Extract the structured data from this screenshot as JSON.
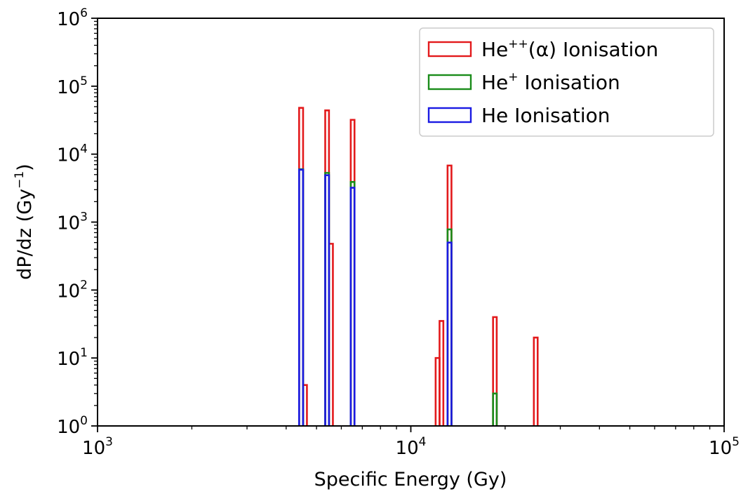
{
  "chart_data": {
    "type": "step-histogram",
    "xlabel": "Specific Energy (Gy)",
    "ylabel": "dP/dz (Gy",
    "ylabel_sup": "−1",
    "ylabel_close": ")",
    "xscale": "log",
    "yscale": "log",
    "xlim": [
      1000,
      100000
    ],
    "ylim": [
      1,
      1000000
    ],
    "grid": false,
    "legend_position": "top-right",
    "x_ticks": [
      {
        "base": "10",
        "exp": "3",
        "value": 1000
      },
      {
        "base": "10",
        "exp": "4",
        "value": 10000
      },
      {
        "base": "10",
        "exp": "5",
        "value": 100000
      }
    ],
    "y_ticks": [
      {
        "base": "10",
        "exp": "0",
        "value": 1
      },
      {
        "base": "10",
        "exp": "1",
        "value": 10
      },
      {
        "base": "10",
        "exp": "2",
        "value": 100
      },
      {
        "base": "10",
        "exp": "3",
        "value": 1000
      },
      {
        "base": "10",
        "exp": "4",
        "value": 10000
      },
      {
        "base": "10",
        "exp": "5",
        "value": 100000
      },
      {
        "base": "10",
        "exp": "6",
        "value": 1000000
      }
    ],
    "series": [
      {
        "name_base": "He",
        "name_sup": "++",
        "name_rest": "(α) Ionisation",
        "color": "#e31a1c",
        "bins": [
          {
            "x0": 4400,
            "x1": 4530,
            "y": 48000
          },
          {
            "x0": 4530,
            "x1": 4660,
            "y": 4
          },
          {
            "x0": 5330,
            "x1": 5480,
            "y": 44000
          },
          {
            "x0": 5480,
            "x1": 5640,
            "y": 480
          },
          {
            "x0": 6430,
            "x1": 6610,
            "y": 32000
          },
          {
            "x0": 12000,
            "x1": 12350,
            "y": 10
          },
          {
            "x0": 12350,
            "x1": 12700,
            "y": 35
          },
          {
            "x0": 13100,
            "x1": 13480,
            "y": 6800
          },
          {
            "x0": 18300,
            "x1": 18800,
            "y": 40
          },
          {
            "x0": 24700,
            "x1": 25400,
            "y": 20
          }
        ]
      },
      {
        "name_base": "He",
        "name_sup": "+",
        "name_rest": " Ionisation",
        "color": "#1a8c1a",
        "bins": [
          {
            "x0": 4400,
            "x1": 4530,
            "y": 6000
          },
          {
            "x0": 5330,
            "x1": 5480,
            "y": 5300
          },
          {
            "x0": 6430,
            "x1": 6610,
            "y": 3900
          },
          {
            "x0": 13100,
            "x1": 13480,
            "y": 780
          },
          {
            "x0": 18300,
            "x1": 18800,
            "y": 3
          }
        ]
      },
      {
        "name_base": "He Ionisation",
        "name_sup": "",
        "name_rest": "",
        "color": "#1a1ae3",
        "bins": [
          {
            "x0": 4400,
            "x1": 4530,
            "y": 5900
          },
          {
            "x0": 5330,
            "x1": 5480,
            "y": 4900
          },
          {
            "x0": 6430,
            "x1": 6610,
            "y": 3200
          },
          {
            "x0": 13100,
            "x1": 13480,
            "y": 500
          }
        ]
      }
    ]
  }
}
